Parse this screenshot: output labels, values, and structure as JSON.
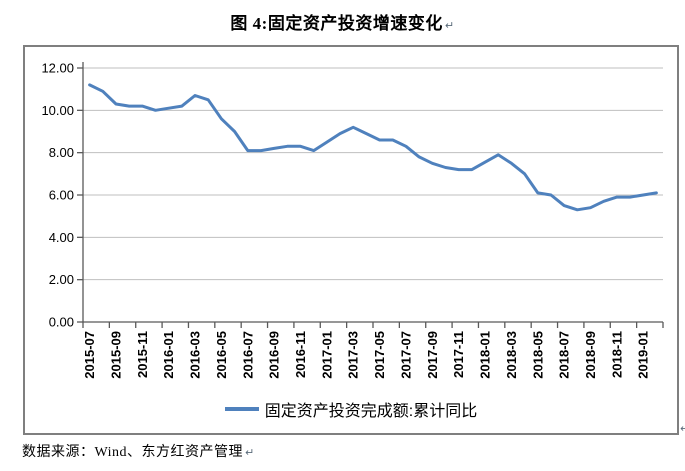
{
  "paragraph_mark": "↵",
  "title": {
    "text": "图 4:固定资产投资增速变化"
  },
  "source_note": {
    "text": "数据来源：Wind、东方红资产管理"
  },
  "chart_data": {
    "type": "line",
    "title": "图 4:固定资产投资增速变化",
    "xlabel": "",
    "ylabel": "",
    "ylim": [
      0,
      12
    ],
    "ytick_step": 2,
    "ytick_labels": [
      "0.00",
      "2.00",
      "4.00",
      "6.00",
      "8.00",
      "10.00",
      "12.00"
    ],
    "xtick_label_every": 2,
    "grid": "horizontal",
    "legend_position": "bottom",
    "colors": {
      "line": "#4F81BD",
      "gridline": "#BFBFBF",
      "axis": "#595959",
      "frame_border": "#7F7F7F"
    },
    "x": [
      "2015-07",
      "2015-08",
      "2015-09",
      "2015-10",
      "2015-11",
      "2015-12",
      "2016-01",
      "2016-02",
      "2016-03",
      "2016-04",
      "2016-05",
      "2016-06",
      "2016-07",
      "2016-08",
      "2016-09",
      "2016-10",
      "2016-11",
      "2016-12",
      "2017-01",
      "2017-02",
      "2017-03",
      "2017-04",
      "2017-05",
      "2017-06",
      "2017-07",
      "2017-08",
      "2017-09",
      "2017-10",
      "2017-11",
      "2017-12",
      "2018-01",
      "2018-02",
      "2018-03",
      "2018-04",
      "2018-05",
      "2018-06",
      "2018-07",
      "2018-08",
      "2018-09",
      "2018-10",
      "2018-11",
      "2018-12",
      "2019-01",
      "2019-02"
    ],
    "series": [
      {
        "name": "固定资产投资完成额:累计同比",
        "color": "#4F81BD",
        "values": [
          11.2,
          10.9,
          10.3,
          10.2,
          10.2,
          10.0,
          10.1,
          10.2,
          10.7,
          10.5,
          9.6,
          9.0,
          8.1,
          8.1,
          8.2,
          8.3,
          8.3,
          8.1,
          8.5,
          8.9,
          9.2,
          8.9,
          8.6,
          8.6,
          8.3,
          7.8,
          7.5,
          7.3,
          7.2,
          7.2,
          7.55,
          7.9,
          7.5,
          7.0,
          6.1,
          6.0,
          5.5,
          5.3,
          5.4,
          5.7,
          5.9,
          5.9,
          6.0,
          6.1
        ]
      }
    ]
  }
}
